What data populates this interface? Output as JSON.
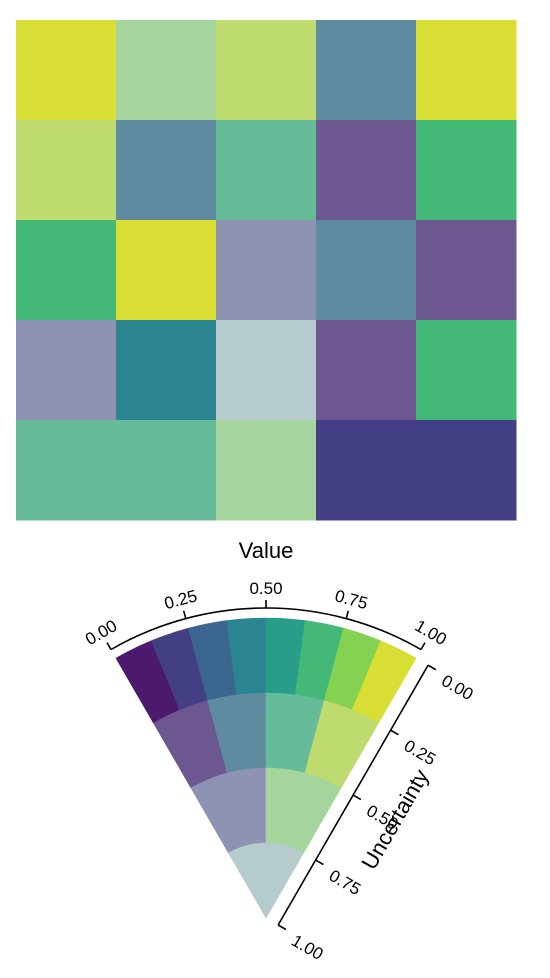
{
  "chart_data": {
    "type": "heatmap",
    "encoding": "value-suppressing uncertainty palette",
    "grid": [
      [
        "#d9de34",
        "#a5d59d",
        "#bedb6f",
        "#5f8ba0",
        "#d9de34"
      ],
      [
        "#bedb6f",
        "#5f8ba0",
        "#66bc99",
        "#6d5791",
        "#44b977"
      ],
      [
        "#44b977",
        "#d9de34",
        "#8e92b3",
        "#5f8ba0",
        "#6d5791"
      ],
      [
        "#8e92b3",
        "#2b8590",
        "#b6cccc",
        "#6d5791",
        "#44b977"
      ],
      [
        "#66bc99",
        "#66bc99",
        "#a5d59d",
        "#433f84",
        "#433f84"
      ]
    ],
    "legend": {
      "type": "value-suppressing-arc",
      "value_axis": {
        "title": "Value",
        "ticks": [
          "0.00",
          "0.25",
          "0.50",
          "0.75",
          "1.00"
        ],
        "range": [
          0,
          1
        ]
      },
      "uncertainty_axis": {
        "title": "Uncertainty",
        "ticks": [
          "0.00",
          "0.25",
          "0.50",
          "0.75",
          "1.00"
        ],
        "range": [
          0,
          1
        ]
      },
      "rings": [
        [
          "#4b1a6e",
          "#433f84",
          "#3b6690",
          "#2b8590",
          "#289d8a",
          "#44b977",
          "#85d253",
          "#d9de34"
        ],
        [
          "#6d5791",
          "#5f8ba0",
          "#66bc99",
          "#bedb6f"
        ],
        [
          "#8e92b3",
          "#a5d59d"
        ],
        [
          "#b6cccc"
        ]
      ]
    }
  }
}
